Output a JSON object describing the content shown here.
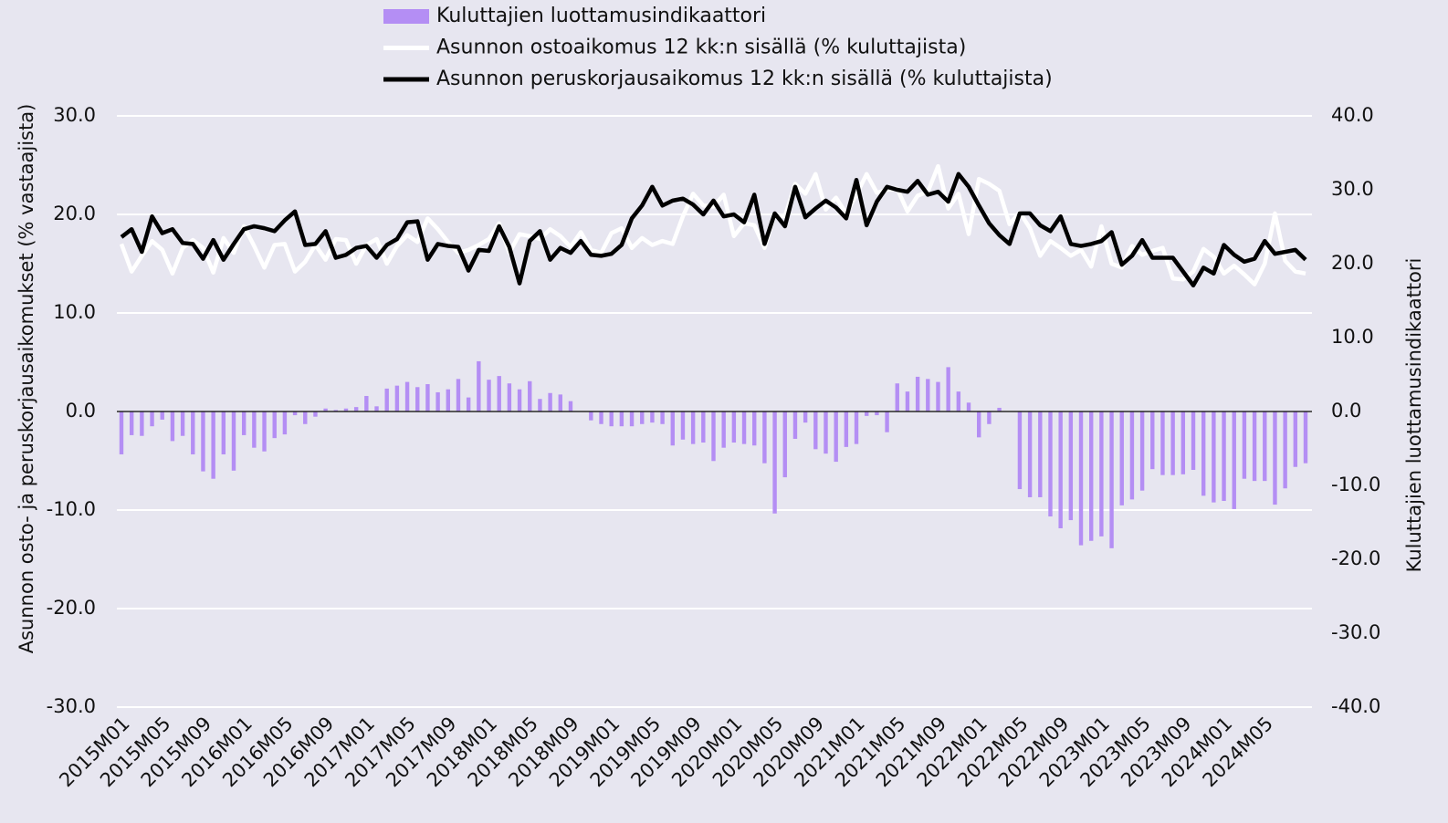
{
  "chart_data": {
    "type": "bar-line",
    "categories": [
      "2015M01",
      null,
      null,
      null,
      "2015M05",
      null,
      null,
      null,
      "2015M09",
      null,
      null,
      null,
      "2016M01",
      null,
      null,
      null,
      "2016M05",
      null,
      null,
      null,
      "2016M09",
      null,
      null,
      null,
      "2017M01",
      null,
      null,
      null,
      "2017M05",
      null,
      null,
      null,
      "2017M09",
      null,
      null,
      null,
      "2018M01",
      null,
      null,
      null,
      "2018M05",
      null,
      null,
      null,
      "2018M09",
      null,
      null,
      null,
      "2019M01",
      null,
      null,
      null,
      "2019M05",
      null,
      null,
      null,
      "2019M09",
      null,
      null,
      null,
      "2020M01",
      null,
      null,
      null,
      "2020M05",
      null,
      null,
      null,
      "2020M09",
      null,
      null,
      null,
      "2021M01",
      null,
      null,
      null,
      "2021M05",
      null,
      null,
      null,
      "2021M09",
      null,
      null,
      null,
      "2022M01",
      null,
      null,
      null,
      "2022M05",
      null,
      null,
      null,
      "2022M09",
      null,
      null,
      null,
      "2023M01",
      null,
      null,
      null,
      "2023M05",
      null,
      null,
      null,
      "2023M09",
      null,
      null,
      null,
      "2024M01",
      null,
      null,
      null,
      "2024M05",
      null,
      null,
      null,
      null
    ],
    "series": [
      {
        "name": "Kuluttajien luottamusindikaattori",
        "kind": "bar",
        "axis": "y2",
        "color": "#b48ef4",
        "values": [
          -5.8,
          -3.2,
          -3.3,
          -2.0,
          -1.1,
          -4.0,
          -3.3,
          -5.8,
          -8.1,
          -9.1,
          -5.8,
          -8.0,
          -3.2,
          -4.9,
          -5.4,
          -3.6,
          -3.1,
          -0.5,
          -1.7,
          -0.7,
          0.4,
          0.2,
          0.4,
          0.6,
          2.1,
          0.7,
          3.1,
          3.5,
          4.0,
          3.3,
          3.7,
          2.6,
          3.0,
          4.4,
          1.9,
          6.8,
          4.3,
          4.8,
          3.8,
          3.0,
          4.1,
          1.7,
          2.5,
          2.3,
          1.4,
          0,
          -1.2,
          -1.7,
          -2.0,
          -2.0,
          -2.0,
          -1.7,
          -1.5,
          -1.7,
          -4.6,
          -3.8,
          -4.4,
          -4.2,
          -6.7,
          -4.9,
          -4.2,
          -4.4,
          -4.6,
          -7.0,
          -13.8,
          -8.9,
          -3.7,
          -1.5,
          -5.1,
          -5.7,
          -6.8,
          -4.8,
          -4.4,
          -0.6,
          -0.5,
          -2.8,
          3.8,
          2.7,
          4.7,
          4.4,
          4.0,
          6.0,
          2.7,
          1.2,
          -3.5,
          -1.7,
          0.5,
          0,
          -10.5,
          -11.6,
          -11.6,
          -14.2,
          -15.8,
          -14.7,
          -18.1,
          -17.5,
          -16.9,
          -18.5,
          -12.7,
          -11.9,
          -10.7,
          -7.8,
          -8.6,
          -8.6,
          -8.5,
          -7.9,
          -11.4,
          -12.3,
          -12.1,
          -13.2,
          -9.1,
          -9.4,
          -9.4,
          -12.6,
          -10.4,
          -7.5,
          -7.0
        ]
      },
      {
        "name": "Asunnon ostoaikomus 12 kk:n sisällä (% kuluttajista)",
        "kind": "line",
        "axis": "y",
        "color": "#ffffff",
        "values": [
          17,
          14.2,
          15.8,
          17.3,
          16.4,
          14.0,
          16.6,
          17.4,
          16.6,
          14.1,
          17.6,
          16.1,
          18.8,
          16.8,
          14.6,
          16.9,
          17,
          14.2,
          15.2,
          16.9,
          15.4,
          17.5,
          17.4,
          15,
          16.9,
          17.5,
          15,
          16.8,
          17.9,
          17.2,
          19.6,
          18.5,
          17.2,
          16.1,
          16.4,
          16.9,
          17.5,
          19.1,
          16.1,
          18,
          17.8,
          17.5,
          18.5,
          17.8,
          16.7,
          18.2,
          16.4,
          16.1,
          18.1,
          18.6,
          16.6,
          17.6,
          16.9,
          17.3,
          17,
          19.8,
          22.1,
          20.9,
          20.8,
          22,
          17.8,
          19.1,
          18.9,
          16.6,
          20,
          19.8,
          23.1,
          22.1,
          24.1,
          20.5,
          21.7,
          20.1,
          22,
          24.1,
          22.2,
          22.5,
          22.6,
          20.3,
          21.9,
          22.3,
          24.9,
          20.6,
          22.1,
          18,
          23.6,
          23.1,
          22.4,
          19,
          20.2,
          18.6,
          15.8,
          17.3,
          16.6,
          15.8,
          16.4,
          14.7,
          18.8,
          15,
          14.6,
          16.8,
          15.9,
          16.3,
          16.6,
          13.5,
          13.4,
          14.2,
          16.5,
          15.7,
          14,
          14.8,
          13.9,
          12.9,
          15,
          20.1,
          15.3,
          14.2,
          14.0
        ]
      },
      {
        "name": "Asunnon peruskorjausaikomus 12 kk:n sisällä (% kuluttajista)",
        "kind": "line",
        "axis": "y",
        "color": "#000000",
        "values": [
          17.7,
          18.5,
          16.2,
          19.8,
          18.1,
          18.5,
          17.1,
          17,
          15.5,
          17.4,
          15.4,
          17,
          18.5,
          18.8,
          18.6,
          18.3,
          19.4,
          20.3,
          16.9,
          17,
          18.3,
          15.6,
          15.9,
          16.6,
          16.8,
          15.6,
          16.9,
          17.5,
          19.2,
          19.3,
          15.4,
          17,
          16.8,
          16.7,
          14.3,
          16.4,
          16.3,
          18.8,
          16.7,
          13,
          17.3,
          18.3,
          15.4,
          16.6,
          16.1,
          17.3,
          15.9,
          15.8,
          16,
          16.9,
          19.6,
          20.9,
          22.8,
          20.9,
          21.4,
          21.6,
          21,
          20,
          21.4,
          19.8,
          20,
          19.2,
          22,
          17,
          20.1,
          18.8,
          22.8,
          19.7,
          20.6,
          21.4,
          20.7,
          19.6,
          23.5,
          18.9,
          21.3,
          22.8,
          22.5,
          22.3,
          23.4,
          22,
          22.3,
          21.3,
          24.1,
          22.8,
          20.9,
          19.1,
          17.9,
          17,
          20.1,
          20.1,
          18.9,
          18.3,
          19.8,
          17,
          16.8,
          17,
          17.3,
          18.2,
          14.9,
          15.8,
          17.4,
          15.6,
          15.6,
          15.6,
          14.2,
          12.8,
          14.6,
          14,
          16.9,
          15.9,
          15.2,
          15.5,
          17.3,
          16,
          16.2,
          16.4,
          15.4
        ]
      }
    ],
    "ylabel": "Asunnon osto- ja peruskorjausaikomukset (% vastaajista)",
    "y2label": "Kuluttajien luottamusindikaattori",
    "ylim": [
      -30,
      30
    ],
    "yticks": [
      {
        "value": -30,
        "label": "-30.0"
      },
      {
        "value": -20,
        "label": "-20.0"
      },
      {
        "value": -10,
        "label": "-10.0"
      },
      {
        "value": 0,
        "label": "0.0"
      },
      {
        "value": 10,
        "label": "10.0"
      },
      {
        "value": 20,
        "label": "20.0"
      },
      {
        "value": 30,
        "label": "30.0"
      }
    ],
    "y2lim": [
      -40,
      40
    ],
    "y2ticks": [
      {
        "value": -40,
        "label": "-40.0"
      },
      {
        "value": -30,
        "label": "-30.0"
      },
      {
        "value": -20,
        "label": "-20.0"
      },
      {
        "value": -10,
        "label": "-10.0"
      },
      {
        "value": 0,
        "label": "0.0"
      },
      {
        "value": 10,
        "label": "10.0"
      },
      {
        "value": 20,
        "label": "20.0"
      },
      {
        "value": 30,
        "label": "30.0"
      },
      {
        "value": 40,
        "label": "40.0"
      }
    ],
    "grid": true,
    "legend": "top"
  }
}
